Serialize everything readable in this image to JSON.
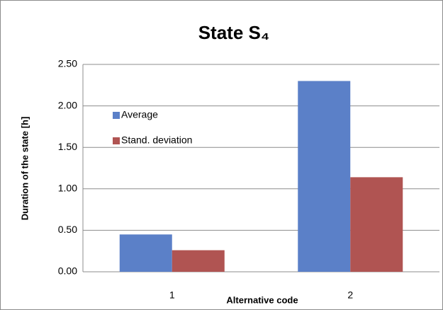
{
  "chart_data": {
    "type": "bar",
    "title": "State S₄",
    "x_label": "Alternative code",
    "y_label": "Duration of the state [h]",
    "categories": [
      "1",
      "2"
    ],
    "series": [
      {
        "name": "Average",
        "color": "#5b80c8",
        "values": [
          0.45,
          2.3
        ]
      },
      {
        "name": "Stand. deviation",
        "color": "#b05452",
        "values": [
          0.26,
          1.14
        ]
      }
    ],
    "ylim": [
      0,
      2.5
    ],
    "yticks": [
      {
        "value": 0,
        "label": "0.00"
      },
      {
        "value": 0.5,
        "label": "0.50"
      },
      {
        "value": 1,
        "label": "1.00"
      },
      {
        "value": 1.5,
        "label": "1.50"
      },
      {
        "value": 2,
        "label": "2.00"
      },
      {
        "value": 2.5,
        "label": "2.50"
      }
    ],
    "grid": true,
    "legend": "upper left"
  }
}
